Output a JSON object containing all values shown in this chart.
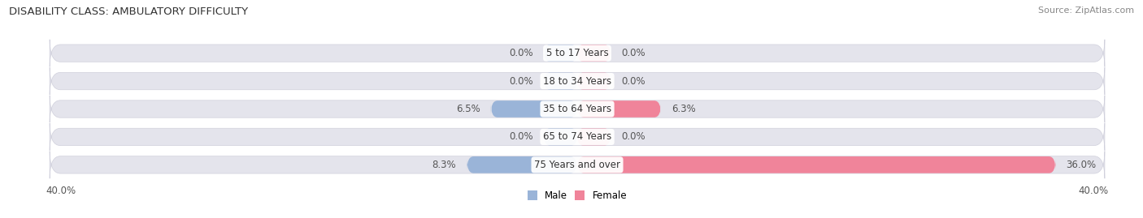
{
  "title": "DISABILITY CLASS: AMBULATORY DIFFICULTY",
  "source": "Source: ZipAtlas.com",
  "categories": [
    "5 to 17 Years",
    "18 to 34 Years",
    "35 to 64 Years",
    "65 to 74 Years",
    "75 Years and over"
  ],
  "male_values": [
    0.0,
    0.0,
    6.5,
    0.0,
    8.3
  ],
  "female_values": [
    0.0,
    0.0,
    6.3,
    0.0,
    36.0
  ],
  "male_color": "#9ab4d8",
  "female_color": "#f0849a",
  "bar_bg_color": "#e4e4ec",
  "bar_border_color": "#d0d0dc",
  "axis_max": 40.0,
  "bar_height": 0.62,
  "label_fontsize": 8.5,
  "title_fontsize": 9.5,
  "source_fontsize": 8,
  "category_fontsize": 8.5,
  "value_label_color": "#555555",
  "bg_color": "#ffffff",
  "row_bg_even": "#f5f5f8",
  "row_bg_odd": "#ffffff"
}
